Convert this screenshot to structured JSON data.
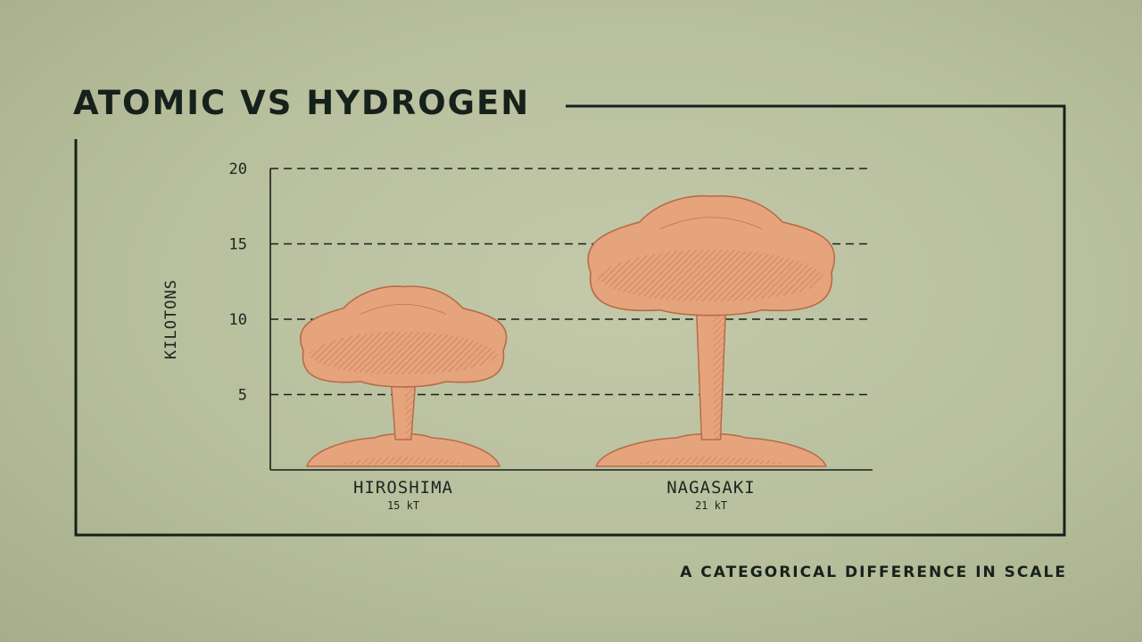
{
  "title": "ATOMIC VS HYDROGEN",
  "subtitle": "A CATEGORICAL DIFFERENCE IN SCALE",
  "colors": {
    "ink": "#17211b",
    "cloud": "#e6a47d",
    "cloud_outline": "#b86a48",
    "background": "#bcc2a1"
  },
  "chart_data": {
    "type": "bar",
    "ylabel": "KILOTONS",
    "xlabel": "",
    "ylim": [
      0,
      20
    ],
    "yticks": [
      5,
      10,
      15,
      20
    ],
    "grid": true,
    "categories": [
      "HIROSHIMA",
      "NAGASAKI"
    ],
    "value_labels": [
      "15 kT",
      "21 kT"
    ],
    "values": [
      15,
      21
    ]
  }
}
